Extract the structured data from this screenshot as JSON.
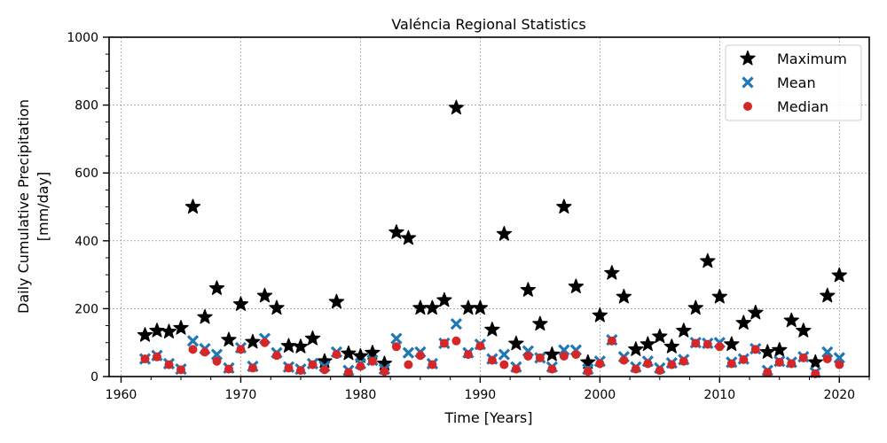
{
  "chart_data": {
    "type": "scatter",
    "title": "Valéncia Regional Statistics",
    "xlabel": "Time [Years]",
    "ylabel_lines": [
      "Daily Cumulative Precipitation",
      "[mm/day]"
    ],
    "xlim": [
      1959,
      2022.5
    ],
    "ylim": [
      0,
      1000
    ],
    "xticks": [
      1960,
      1970,
      1980,
      1990,
      2000,
      2010,
      2020
    ],
    "yticks": [
      0,
      200,
      400,
      600,
      800,
      1000
    ],
    "grid": true,
    "legend_position": "top-right",
    "x": [
      1962,
      1963,
      1964,
      1965,
      1966,
      1967,
      1968,
      1969,
      1970,
      1971,
      1972,
      1973,
      1974,
      1975,
      1976,
      1977,
      1978,
      1979,
      1980,
      1981,
      1982,
      1983,
      1984,
      1985,
      1986,
      1987,
      1988,
      1989,
      1990,
      1991,
      1992,
      1993,
      1994,
      1995,
      1996,
      1997,
      1998,
      1999,
      2000,
      2001,
      2002,
      2003,
      2004,
      2005,
      2006,
      2007,
      2008,
      2009,
      2010,
      2011,
      2012,
      2013,
      2014,
      2015,
      2016,
      2017,
      2018,
      2019,
      2020
    ],
    "series": [
      {
        "name": "Maximum",
        "marker": "star",
        "color": "#000000",
        "values": [
          122,
          135,
          132,
          143,
          500,
          175,
          260,
          108,
          213,
          102,
          238,
          202,
          90,
          88,
          112,
          45,
          220,
          68,
          60,
          70,
          38,
          425,
          408,
          202,
          202,
          225,
          792,
          202,
          202,
          138,
          420,
          97,
          255,
          155,
          65,
          500,
          265,
          42,
          180,
          305,
          235,
          80,
          95,
          118,
          88,
          135,
          202,
          340,
          235,
          95,
          158,
          188,
          72,
          78,
          165,
          135,
          42,
          238,
          298
        ]
      },
      {
        "name": "Mean",
        "marker": "x",
        "color": "#1f77b4",
        "values": [
          52,
          62,
          38,
          22,
          105,
          82,
          65,
          25,
          85,
          30,
          112,
          70,
          28,
          22,
          38,
          30,
          72,
          18,
          38,
          48,
          22,
          112,
          70,
          72,
          38,
          98,
          155,
          70,
          95,
          52,
          65,
          28,
          75,
          55,
          28,
          78,
          78,
          22,
          45,
          108,
          58,
          28,
          45,
          25,
          40,
          50,
          100,
          98,
          100,
          42,
          52,
          82,
          18,
          45,
          42,
          58,
          12,
          72,
          55
        ]
      },
      {
        "name": "Median",
        "marker": "circle",
        "color": "#d62728",
        "values": [
          52,
          58,
          35,
          20,
          80,
          72,
          45,
          22,
          80,
          25,
          100,
          62,
          25,
          18,
          35,
          20,
          65,
          12,
          30,
          45,
          15,
          88,
          35,
          62,
          35,
          98,
          105,
          65,
          90,
          48,
          35,
          22,
          60,
          55,
          22,
          60,
          65,
          15,
          38,
          105,
          48,
          22,
          38,
          18,
          35,
          45,
          98,
          95,
          88,
          38,
          50,
          80,
          12,
          42,
          38,
          55,
          8,
          52,
          35
        ]
      }
    ]
  }
}
